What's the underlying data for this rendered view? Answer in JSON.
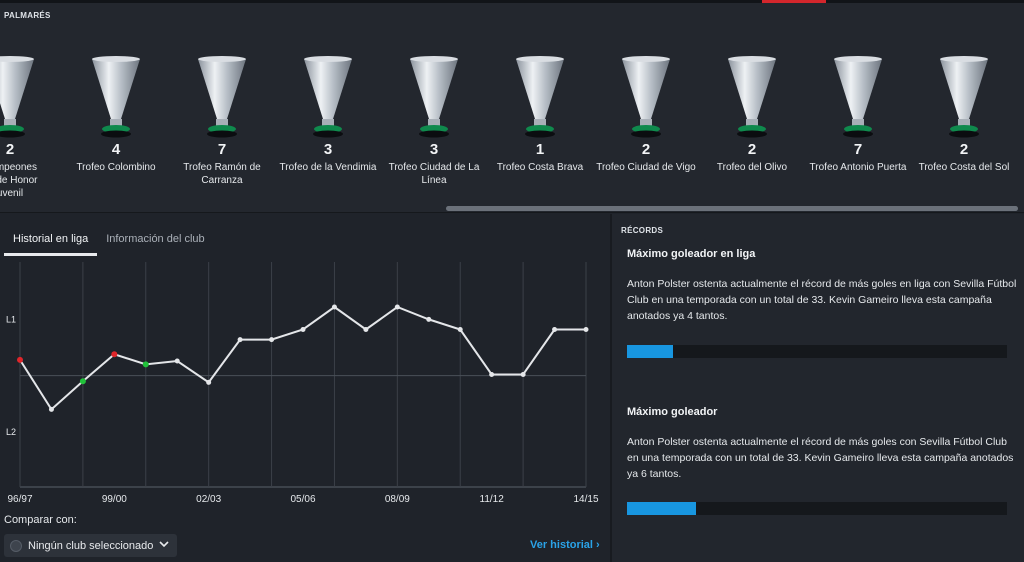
{
  "palmares": {
    "title": "PALMARÉS",
    "trophies": [
      {
        "count": "2",
        "name": "Campeones\nón de Honor\nuvenil"
      },
      {
        "count": "4",
        "name": "Trofeo Colombino"
      },
      {
        "count": "7",
        "name": "Trofeo Ramón de Carranza"
      },
      {
        "count": "3",
        "name": "Trofeo de la Vendimia"
      },
      {
        "count": "3",
        "name": "Trofeo Ciudad de La Línea"
      },
      {
        "count": "1",
        "name": "Trofeo Costa Brava"
      },
      {
        "count": "2",
        "name": "Trofeo Ciudad de Vigo"
      },
      {
        "count": "2",
        "name": "Trofeo del Olivo"
      },
      {
        "count": "7",
        "name": "Trofeo Antonio Puerta"
      },
      {
        "count": "2",
        "name": "Trofeo Costa del Sol"
      }
    ]
  },
  "tabs": [
    {
      "label": "Historial en liga",
      "active": true
    },
    {
      "label": "Información del club",
      "active": false
    }
  ],
  "chart_data": {
    "type": "line",
    "y_categories": [
      "L1",
      "L2"
    ],
    "x_tick_labels": [
      "96/97",
      "99/00",
      "02/03",
      "05/06",
      "08/09",
      "11/12",
      "14/15"
    ],
    "seasons": [
      "96/97",
      "97/98",
      "98/99",
      "99/00",
      "00/01",
      "01/02",
      "02/03",
      "03/04",
      "04/05",
      "05/06",
      "06/07",
      "07/08",
      "08/09",
      "09/10",
      "10/11",
      "11/12",
      "12/13",
      "13/14",
      "14/15"
    ],
    "league": [
      "L2",
      "L2",
      "L2",
      "L2",
      "L2",
      "L1",
      "L1",
      "L1",
      "L1",
      "L1",
      "L1",
      "L1",
      "L1",
      "L1",
      "L1",
      "L1",
      "L1",
      "L1",
      "L1"
    ],
    "position_index": [
      8.7,
      13.1,
      10.6,
      8.2,
      9.1,
      8.8,
      10.7,
      6.9,
      6.9,
      6.0,
      4.0,
      6.0,
      4.0,
      5.1,
      6.0,
      10.0,
      10.0,
      6.0,
      6.0
    ],
    "markers": [
      {
        "season": "96/97",
        "color": "#e0262b"
      },
      {
        "season": "98/99",
        "color": "#21c23a"
      },
      {
        "season": "99/00",
        "color": "#e0262b"
      },
      {
        "season": "00/01",
        "color": "#21c23a"
      }
    ],
    "line_color": "#e4e6e9"
  },
  "compare": {
    "label": "Comparar con:",
    "selected": "Ningún club seleccionado"
  },
  "history_link": "Ver historial",
  "records": {
    "title": "RÉCORDS",
    "items": [
      {
        "heading": "Máximo goleador en liga",
        "text": "Anton Polster ostenta actualmente el récord de más goles en liga con Sevilla Fútbol Club en una temporada con un total de 33. Kevin Gameiro lleva esta campaña anotados ya 4 tantos.",
        "progress": 0.121
      },
      {
        "heading": "Máximo goleador",
        "text": "Anton Polster ostenta actualmente el récord de más goles con Sevilla Fútbol Club en una temporada con un total de 33. Kevin Gameiro lleva esta campaña anotados ya 6 tantos.",
        "progress": 0.182
      }
    ]
  },
  "colors": {
    "accent": "#d3262c",
    "link": "#2aa3e8",
    "progress": "#1896e0"
  }
}
